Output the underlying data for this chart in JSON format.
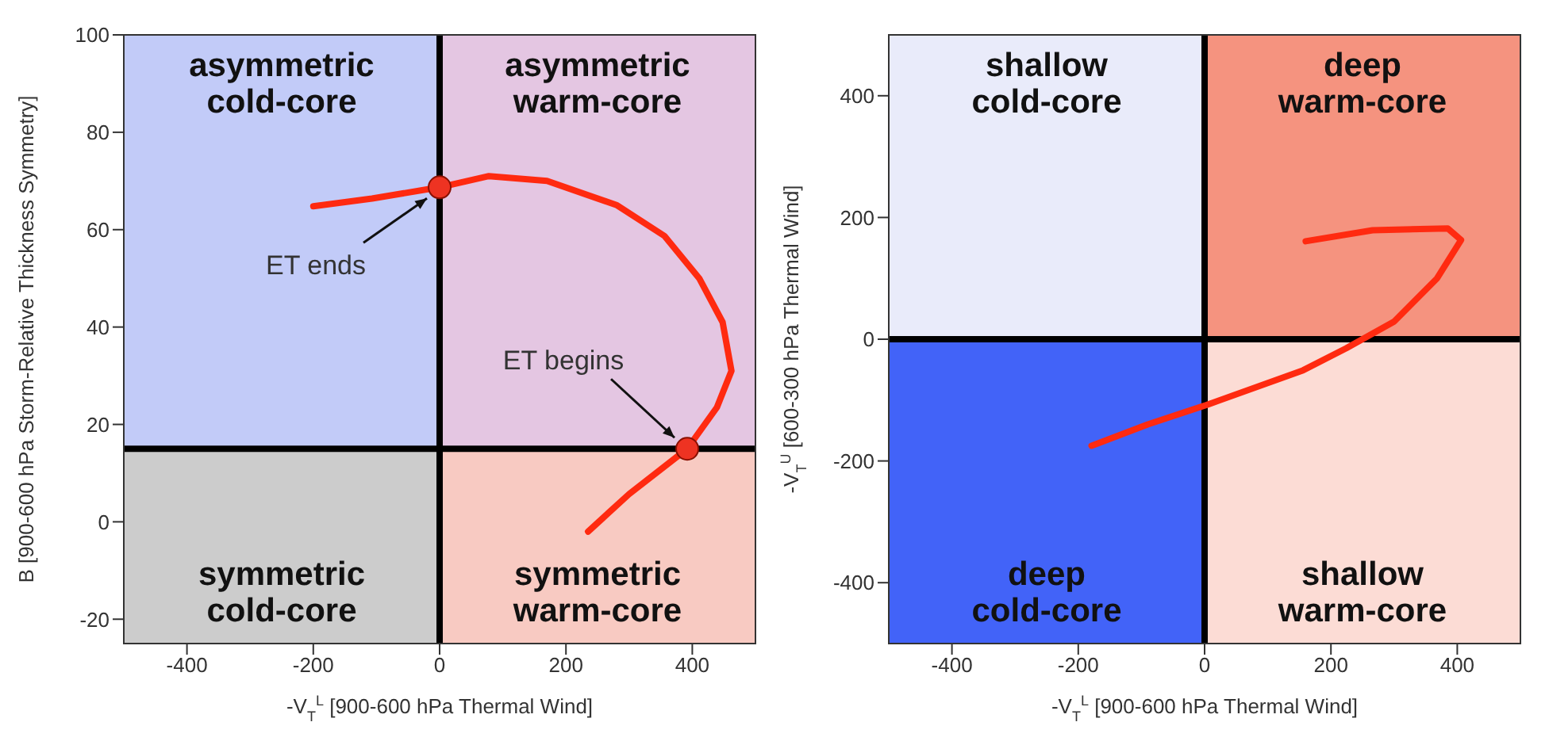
{
  "chart_data": [
    {
      "type": "line",
      "xlabel": "-V$_{T}$$^{L}$ [900-600 hPa Thermal Wind]",
      "ylabel": "B [900-600 hPa Storm-Relative Thickness Symmetry]",
      "xlim": [
        -500,
        500
      ],
      "ylim": [
        -25,
        100
      ],
      "xticks": [
        -400,
        -200,
        0,
        200,
        400
      ],
      "yticks": [
        -20,
        0,
        20,
        40,
        60,
        80,
        100
      ],
      "series": [
        {
          "color": "#ff2a10",
          "x": [
            235,
            300,
            392,
            439,
            462,
            448,
            411,
            356,
            281,
            170,
            78,
            0,
            -107,
            -200
          ],
          "values": [
            -2,
            5.7,
            15,
            23.5,
            31,
            41,
            50,
            58.7,
            65,
            70,
            71,
            68.7,
            66.4,
            64.8
          ]
        },
        {
          "type": "scatter",
          "color": "#ee3322",
          "marker": "circle",
          "x": [
            0,
            392
          ],
          "values": [
            68.7,
            15
          ]
        }
      ],
      "ref_lines": [
        {
          "axis": "x",
          "value": 0,
          "color": "#000000"
        },
        {
          "axis": "y",
          "value": 15,
          "color": "#000000"
        }
      ],
      "annotations": [
        "asymmetric\ncold-core",
        "asymmetric\nwarm-core",
        "symmetric\ncold-core",
        "symmetric\nwarm-core",
        "ET ends",
        "ET begins"
      ]
    },
    {
      "type": "line",
      "xlabel": "-V$_{T}$$^{L}$ [900-600 hPa Thermal Wind]",
      "ylabel": "-V$_{T}$$^{U}$ [600-300 hPa Thermal Wind]",
      "xlim": [
        -500,
        500
      ],
      "ylim": [
        -500,
        500
      ],
      "xticks": [
        -400,
        -200,
        0,
        200,
        400
      ],
      "yticks": [
        -400,
        -200,
        0,
        200,
        400
      ],
      "series": [
        {
          "color": "#ff2a10",
          "x": [
            160,
            266,
            385,
            406,
            368,
            300,
            224,
            156,
            3,
            -90,
            -179
          ],
          "values": [
            161,
            179,
            182,
            163,
            100,
            29,
            -15,
            -51,
            -108,
            -140,
            -175
          ]
        }
      ],
      "ref_lines": [
        {
          "axis": "x",
          "value": 0,
          "color": "#000000"
        },
        {
          "axis": "y",
          "value": 0,
          "color": "#000000"
        }
      ],
      "annotations": [
        "shallow\ncold-core",
        "deep\nwarm-core",
        "deep\ncold-core",
        "shallow\nwarm-core"
      ]
    }
  ]
}
